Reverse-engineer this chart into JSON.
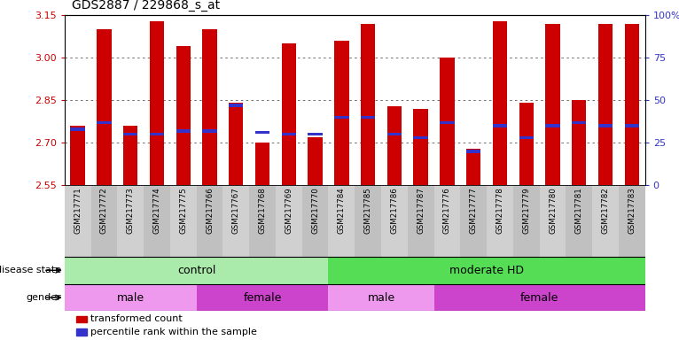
{
  "title": "GDS2887 / 229868_s_at",
  "samples": [
    "GSM217771",
    "GSM217772",
    "GSM217773",
    "GSM217774",
    "GSM217775",
    "GSM217766",
    "GSM217767",
    "GSM217768",
    "GSM217769",
    "GSM217770",
    "GSM217784",
    "GSM217785",
    "GSM217786",
    "GSM217787",
    "GSM217776",
    "GSM217777",
    "GSM217778",
    "GSM217779",
    "GSM217780",
    "GSM217781",
    "GSM217782",
    "GSM217783"
  ],
  "transformed_count": [
    2.76,
    3.1,
    2.76,
    3.13,
    3.04,
    3.1,
    2.84,
    2.7,
    3.05,
    2.72,
    3.06,
    3.12,
    2.83,
    2.82,
    3.0,
    2.68,
    3.13,
    2.84,
    3.12,
    2.85,
    3.12,
    3.12
  ],
  "percentile_rank": [
    33,
    37,
    30,
    30,
    32,
    32,
    47,
    31,
    30,
    30,
    40,
    40,
    30,
    28,
    37,
    20,
    35,
    28,
    35,
    37,
    35,
    35
  ],
  "ylim_left": [
    2.55,
    3.15
  ],
  "ylim_right": [
    0,
    100
  ],
  "yticks_left": [
    2.55,
    2.7,
    2.85,
    3.0,
    3.15
  ],
  "yticks_right": [
    0,
    25,
    50,
    75,
    100
  ],
  "bar_color": "#cc0000",
  "marker_color": "#3333cc",
  "bar_base": 2.55,
  "disease_state_groups": [
    {
      "label": "control",
      "start": 0,
      "end": 10,
      "color": "#aaeaaa"
    },
    {
      "label": "moderate HD",
      "start": 10,
      "end": 22,
      "color": "#55dd55"
    }
  ],
  "gender_groups": [
    {
      "label": "male",
      "start": 0,
      "end": 5,
      "color": "#ee99ee"
    },
    {
      "label": "female",
      "start": 5,
      "end": 10,
      "color": "#cc44cc"
    },
    {
      "label": "male",
      "start": 10,
      "end": 14,
      "color": "#ee99ee"
    },
    {
      "label": "female",
      "start": 14,
      "end": 22,
      "color": "#cc44cc"
    }
  ],
  "legend_items": [
    {
      "label": "transformed count",
      "color": "#cc0000"
    },
    {
      "label": "percentile rank within the sample",
      "color": "#3333cc"
    }
  ],
  "grid_color": "#555555",
  "background_color": "#ffffff",
  "left_label_color": "#cc0000",
  "right_label_color": "#3333cc",
  "xtick_bg_even": "#d0d0d0",
  "xtick_bg_odd": "#c0c0c0"
}
